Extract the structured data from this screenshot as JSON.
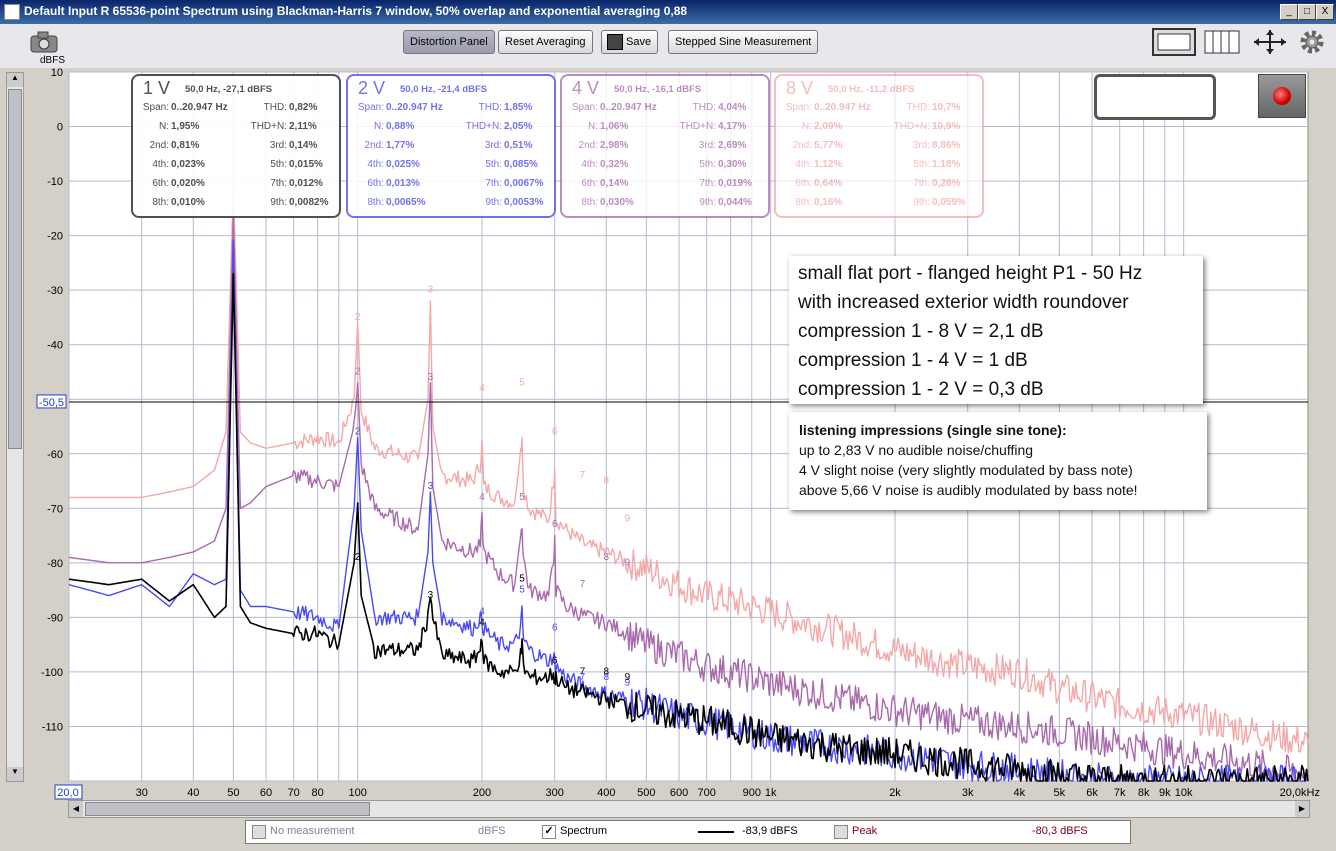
{
  "window": {
    "title": "Default Input R 65536-point Spectrum using Blackman-Harris 7 window, 50% overlap and exponential averaging 0,88",
    "controls": [
      "_",
      "□",
      "X"
    ]
  },
  "toolbar": {
    "distortion_panel": "Distortion Panel",
    "reset_averaging": "Reset Averaging",
    "save": "Save",
    "stepped_sine": "Stepped Sine Measurement"
  },
  "axes": {
    "y_unit": "dBFS",
    "y_ticks": [
      "10",
      "0",
      "-10",
      "-20",
      "-30",
      "-40",
      "-50,5",
      "-60",
      "-70",
      "-80",
      "-90",
      "-100",
      "-110"
    ],
    "y_values": [
      10,
      0,
      -10,
      -20,
      -30,
      -40,
      -50.5,
      -60,
      -70,
      -80,
      -90,
      -100,
      -110
    ],
    "x_ticks": [
      "30",
      "40",
      "50",
      "60",
      "70",
      "80",
      "100",
      "200",
      "300",
      "400",
      "500",
      "600",
      "700",
      "900",
      "1k",
      "2k",
      "3k",
      "4k",
      "5k",
      "6k",
      "7k",
      "8k",
      "9k",
      "10k"
    ],
    "x_values": [
      30,
      40,
      50,
      60,
      70,
      80,
      100,
      200,
      300,
      400,
      500,
      600,
      700,
      900,
      1000,
      2000,
      3000,
      4000,
      5000,
      6000,
      7000,
      8000,
      9000,
      10000
    ],
    "x_start": "20,0",
    "x_end": "20,0kHz",
    "cursor_value": "-50,5"
  },
  "panels": [
    {
      "voltage": "1 V",
      "peak": "50,0 Hz, -27,1 dBFS",
      "color": "#505050",
      "rows": [
        [
          "Span:",
          "0..20.947 Hz",
          "THD:",
          "0,82%"
        ],
        [
          "N:",
          "1,95%",
          "THD+N:",
          "2,11%"
        ],
        [
          "2nd:",
          "0,81%",
          "3rd:",
          "0,14%"
        ],
        [
          "4th:",
          "0,023%",
          "5th:",
          "0,015%"
        ],
        [
          "6th:",
          "0,020%",
          "7th:",
          "0,012%"
        ],
        [
          "8th:",
          "0,010%",
          "9th:",
          "0,0082%"
        ]
      ]
    },
    {
      "voltage": "2 V",
      "peak": "50,0 Hz, -21,4 dBFS",
      "color": "#6b6bea",
      "rows": [
        [
          "Span:",
          "0..20.947 Hz",
          "THD:",
          "1,85%"
        ],
        [
          "N:",
          "0,88%",
          "THD+N:",
          "2,05%"
        ],
        [
          "2nd:",
          "1,77%",
          "3rd:",
          "0,51%"
        ],
        [
          "4th:",
          "0,025%",
          "5th:",
          "0,085%"
        ],
        [
          "6th:",
          "0,013%",
          "7th:",
          "0,0067%"
        ],
        [
          "8th:",
          "0,0065%",
          "9th:",
          "0,0053%"
        ]
      ]
    },
    {
      "voltage": "4 V",
      "peak": "50,0 Hz, -16,1 dBFS",
      "color": "#b07ab4",
      "rows": [
        [
          "Span:",
          "0..20.947 Hz",
          "THD:",
          "4,04%"
        ],
        [
          "N:",
          "1,06%",
          "THD+N:",
          "4,17%"
        ],
        [
          "2nd:",
          "2,98%",
          "3rd:",
          "2,69%"
        ],
        [
          "4th:",
          "0,32%",
          "5th:",
          "0,30%"
        ],
        [
          "6th:",
          "0,14%",
          "7th:",
          "0,019%"
        ],
        [
          "8th:",
          "0,030%",
          "9th:",
          "0,044%"
        ]
      ]
    },
    {
      "voltage": "8 V",
      "peak": "50,0 Hz, -11,2 dBFS",
      "color": "#f2a8a8",
      "rows": [
        [
          "Span:",
          "0..20.947 Hz",
          "THD:",
          "10,7%"
        ],
        [
          "N:",
          "2,09%",
          "THD+N:",
          "10,9%"
        ],
        [
          "2nd:",
          "5,77%",
          "3rd:",
          "8,86%"
        ],
        [
          "4th:",
          "1,12%",
          "5th:",
          "1,18%"
        ],
        [
          "6th:",
          "0,64%",
          "7th:",
          "0,28%"
        ],
        [
          "8th:",
          "0,16%",
          "9th:",
          "0,059%"
        ]
      ]
    }
  ],
  "annotation_main": [
    "small flat port - flanged height P1 - 50 Hz",
    "with increased exterior width roundover",
    "compression 1 - 8 V = 2,1 dB",
    "compression 1 - 4 V = 1 dB",
    "compression 1 - 2 V = 0,3 dB"
  ],
  "annotation_listening": {
    "heading": "listening impressions (single sine tone):",
    "lines": [
      "up to 2,83 V no audible noise/chuffing",
      "4 V slight noise (very slightly modulated by bass note)",
      "above 5,66 V noise is audibly modulated by bass note!"
    ]
  },
  "legend": {
    "no_measurement": "No measurement",
    "no_measurement_unit": "dBFS",
    "spectrum": "Spectrum",
    "spectrum_value": "-83,9 dBFS",
    "peak": "Peak",
    "peak_value": "-80,3 dBFS"
  },
  "chart_data": {
    "type": "line",
    "xlabel": "",
    "ylabel": "dBFS",
    "xscale": "log",
    "xlim": [
      20,
      20000
    ],
    "ylim": [
      -120,
      10
    ],
    "series": [
      {
        "name": "1 V",
        "color": "#000000",
        "x": [
          20,
          25,
          30,
          35,
          40,
          45,
          48,
          50,
          52,
          55,
          60,
          70,
          80,
          90,
          98,
          100,
          102,
          110,
          140,
          148,
          150,
          152,
          160,
          190,
          198,
          200,
          202,
          220,
          240,
          248,
          250,
          252,
          260,
          290,
          298,
          300,
          302,
          320,
          360,
          400,
          450,
          500,
          600,
          700,
          800,
          900,
          1000,
          1500,
          2000,
          3000,
          4000,
          5000,
          7000,
          10000,
          15000,
          20000
        ],
        "y": [
          -83,
          -84,
          -83,
          -87,
          -84,
          -90,
          -88,
          -27,
          -88,
          -91,
          -92,
          -93,
          -93,
          -95,
          -80,
          -69,
          -86,
          -96,
          -96,
          -90,
          -85,
          -90,
          -97,
          -98,
          -96,
          -93,
          -98,
          -100,
          -100,
          -97,
          -95,
          -99,
          -101,
          -101,
          -100,
          -102,
          -101,
          -103,
          -104,
          -105,
          -106,
          -107,
          -108,
          -109,
          -110,
          -111,
          -112,
          -114,
          -115,
          -117,
          -118,
          -119,
          -120,
          -120,
          -120,
          -120
        ]
      },
      {
        "name": "2 V",
        "color": "#4a4af0",
        "x": [
          20,
          25,
          30,
          35,
          40,
          45,
          48,
          50,
          52,
          55,
          60,
          70,
          80,
          90,
          98,
          100,
          102,
          110,
          140,
          148,
          150,
          152,
          160,
          190,
          198,
          200,
          202,
          220,
          240,
          248,
          250,
          252,
          260,
          290,
          298,
          300,
          302,
          320,
          360,
          400,
          450,
          500,
          600,
          700,
          800,
          900,
          1000,
          1500,
          2000,
          3000,
          4000,
          5000,
          7000,
          10000,
          15000,
          20000
        ],
        "y": [
          -84,
          -86,
          -84,
          -88,
          -82,
          -84,
          -83,
          -21,
          -85,
          -88,
          -88,
          -89,
          -90,
          -92,
          -70,
          -57,
          -74,
          -90,
          -90,
          -78,
          -67,
          -80,
          -90,
          -92,
          -90,
          -91,
          -92,
          -95,
          -95,
          -92,
          -89,
          -94,
          -96,
          -98,
          -97,
          -98,
          -99,
          -101,
          -103,
          -104,
          -105,
          -106,
          -108,
          -109,
          -110,
          -111,
          -112,
          -114,
          -115,
          -117,
          -118,
          -119,
          -120,
          -120,
          -120,
          -120
        ]
      },
      {
        "name": "4 V",
        "color": "#a86aac",
        "x": [
          20,
          25,
          30,
          35,
          40,
          45,
          48,
          50,
          52,
          55,
          60,
          70,
          80,
          90,
          98,
          100,
          102,
          110,
          140,
          148,
          150,
          152,
          160,
          190,
          198,
          200,
          202,
          220,
          240,
          248,
          250,
          252,
          260,
          290,
          298,
          300,
          302,
          320,
          360,
          400,
          450,
          500,
          600,
          700,
          800,
          900,
          1000,
          1500,
          2000,
          3000,
          4000,
          5000,
          7000,
          10000,
          15000,
          20000
        ],
        "y": [
          -79,
          -80,
          -80,
          -79,
          -78,
          -76,
          -70,
          -16,
          -70,
          -69,
          -66,
          -64,
          -65,
          -66,
          -55,
          -47,
          -62,
          -70,
          -74,
          -60,
          -47,
          -66,
          -76,
          -78,
          -77,
          -72,
          -78,
          -82,
          -84,
          -75,
          -73,
          -79,
          -85,
          -86,
          -80,
          -75,
          -85,
          -88,
          -90,
          -91,
          -93,
          -95,
          -97,
          -99,
          -100,
          -101,
          -102,
          -105,
          -107,
          -109,
          -110,
          -111,
          -113,
          -115,
          -117,
          -119
        ]
      },
      {
        "name": "8 V",
        "color": "#f4a8a8",
        "x": [
          20,
          25,
          30,
          35,
          40,
          45,
          48,
          50,
          52,
          55,
          60,
          70,
          80,
          90,
          98,
          100,
          102,
          110,
          140,
          148,
          150,
          152,
          160,
          190,
          198,
          200,
          202,
          220,
          240,
          248,
          250,
          252,
          260,
          290,
          298,
          300,
          302,
          320,
          360,
          400,
          450,
          500,
          600,
          700,
          800,
          900,
          1000,
          1500,
          2000,
          3000,
          4000,
          5000,
          7000,
          10000,
          15000,
          20000
        ],
        "y": [
          -68,
          -68,
          -68,
          -67,
          -66,
          -63,
          -56,
          -11,
          -56,
          -58,
          -59,
          -58,
          -57,
          -58,
          -50,
          -36,
          -52,
          -59,
          -61,
          -50,
          -32,
          -55,
          -64,
          -65,
          -62,
          -58,
          -66,
          -68,
          -69,
          -60,
          -57,
          -66,
          -70,
          -72,
          -65,
          -63,
          -72,
          -74,
          -77,
          -78,
          -80,
          -81,
          -84,
          -86,
          -87,
          -88,
          -89,
          -93,
          -96,
          -99,
          -100,
          -103,
          -106,
          -108,
          -111,
          -113
        ]
      }
    ],
    "harmonic_labels": [
      {
        "n": "2",
        "x": 100
      },
      {
        "n": "3",
        "x": 150
      },
      {
        "n": "4",
        "x": 200
      },
      {
        "n": "5",
        "x": 250
      },
      {
        "n": "6",
        "x": 300
      },
      {
        "n": "7",
        "x": 350
      },
      {
        "n": "8",
        "x": 400
      },
      {
        "n": "9",
        "x": 450
      }
    ]
  }
}
